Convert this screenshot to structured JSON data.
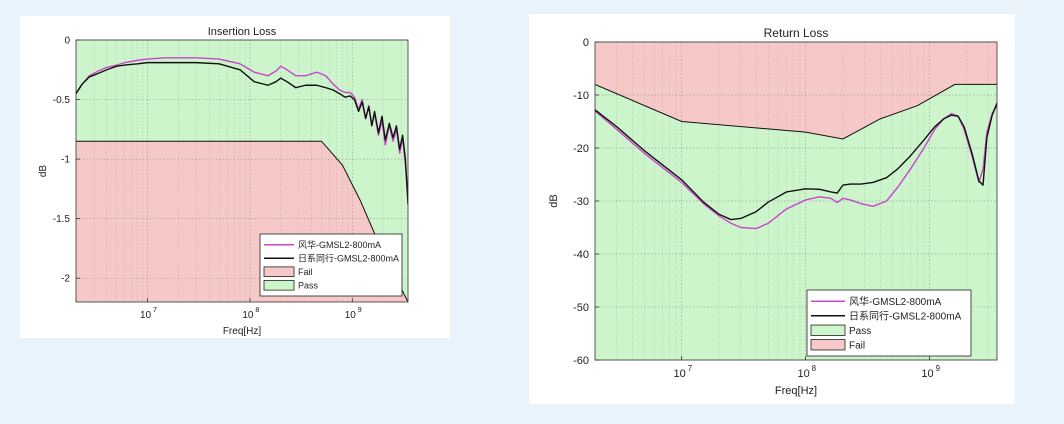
{
  "colors": {
    "page_background": "#e8f3fb",
    "pass": "#ccf5cc",
    "fail": "#f7c8c8",
    "series_fenghua": "#cc44cc",
    "series_rixi": "#111111",
    "grid": "#9a9a9a"
  },
  "chart_data": [
    {
      "id": "insertion-loss",
      "type": "line",
      "title": "Insertion Loss",
      "xlabel": "Freq[Hz]",
      "ylabel": "dB",
      "xscale": "log",
      "xlim": [
        2000000,
        3500000000
      ],
      "ylim": [
        -2.2,
        0
      ],
      "xticks": [
        {
          "v": 10000000,
          "label": "10",
          "exp": "7"
        },
        {
          "v": 100000000,
          "label": "10",
          "exp": "8"
        },
        {
          "v": 1000000000,
          "label": "10",
          "exp": "9"
        }
      ],
      "yticks": [
        {
          "v": 0,
          "label": "0"
        },
        {
          "v": -0.5,
          "label": "-0.5"
        },
        {
          "v": -1,
          "label": "-1"
        },
        {
          "v": -1.5,
          "label": "-1.5"
        },
        {
          "v": -2,
          "label": "-2"
        }
      ],
      "grid": true,
      "legend_position": "bottom-right",
      "limit_mask": {
        "pass_region": "above",
        "x": [
          2000000,
          500000000,
          800000000,
          1200000000,
          1800000000,
          2500000000,
          3500000000
        ],
        "y": [
          -0.85,
          -0.85,
          -1.05,
          -1.35,
          -1.7,
          -1.95,
          -2.2
        ]
      },
      "series": [
        {
          "name": "风华-GMSL2-800mA",
          "color": "#cc44cc",
          "x": [
            2000000,
            2300000,
            2700000,
            3300000,
            4000000,
            5000000,
            6000000,
            8000000,
            10000000,
            15000000,
            20000000,
            30000000,
            50000000,
            80000000,
            110000000,
            150000000,
            180000000,
            200000000,
            230000000,
            280000000,
            350000000,
            450000000,
            550000000,
            650000000,
            750000000,
            850000000,
            950000000,
            1050000000,
            1150000000,
            1250000000,
            1350000000,
            1450000000,
            1550000000,
            1650000000,
            1800000000,
            1950000000,
            2100000000,
            2300000000,
            2500000000,
            2700000000,
            2900000000,
            3100000000,
            3300000000,
            3500000000
          ],
          "y": [
            -0.45,
            -0.37,
            -0.3,
            -0.26,
            -0.23,
            -0.21,
            -0.19,
            -0.17,
            -0.16,
            -0.15,
            -0.15,
            -0.15,
            -0.16,
            -0.2,
            -0.27,
            -0.3,
            -0.26,
            -0.22,
            -0.25,
            -0.3,
            -0.3,
            -0.27,
            -0.3,
            -0.37,
            -0.42,
            -0.44,
            -0.44,
            -0.48,
            -0.58,
            -0.5,
            -0.66,
            -0.55,
            -0.72,
            -0.62,
            -0.8,
            -0.68,
            -0.88,
            -0.72,
            -0.85,
            -0.75,
            -0.95,
            -0.82,
            -1.05,
            -1.3
          ]
        },
        {
          "name": "日系同行-GMSL2-800mA",
          "color": "#111111",
          "x": [
            2000000,
            2300000,
            2700000,
            3300000,
            4000000,
            5000000,
            6000000,
            8000000,
            10000000,
            15000000,
            20000000,
            30000000,
            50000000,
            80000000,
            110000000,
            150000000,
            180000000,
            200000000,
            230000000,
            280000000,
            350000000,
            450000000,
            550000000,
            650000000,
            750000000,
            850000000,
            950000000,
            1050000000,
            1150000000,
            1250000000,
            1350000000,
            1450000000,
            1550000000,
            1650000000,
            1800000000,
            1950000000,
            2100000000,
            2300000000,
            2500000000,
            2700000000,
            2900000000,
            3100000000,
            3300000000,
            3500000000
          ],
          "y": [
            -0.45,
            -0.37,
            -0.31,
            -0.28,
            -0.25,
            -0.22,
            -0.21,
            -0.2,
            -0.19,
            -0.19,
            -0.19,
            -0.19,
            -0.2,
            -0.25,
            -0.35,
            -0.38,
            -0.35,
            -0.32,
            -0.35,
            -0.4,
            -0.38,
            -0.38,
            -0.4,
            -0.42,
            -0.45,
            -0.48,
            -0.47,
            -0.5,
            -0.6,
            -0.52,
            -0.66,
            -0.56,
            -0.72,
            -0.6,
            -0.78,
            -0.64,
            -0.84,
            -0.7,
            -0.82,
            -0.72,
            -0.92,
            -0.8,
            -1.0,
            -1.38
          ]
        }
      ],
      "legend": [
        {
          "label": "风华-GMSL2-800mA",
          "kind": "line",
          "color": "#cc44cc"
        },
        {
          "label": "日系同行-GMSL2-800mA",
          "kind": "line",
          "color": "#111111"
        },
        {
          "label": "Fail",
          "kind": "patch",
          "color": "#f7c8c8"
        },
        {
          "label": "Pass",
          "kind": "patch",
          "color": "#ccf5cc"
        }
      ]
    },
    {
      "id": "return-loss",
      "type": "line",
      "title": "Return Loss",
      "xlabel": "Freq[Hz]",
      "ylabel": "dB",
      "xscale": "log",
      "xlim": [
        2000000,
        3500000000
      ],
      "ylim": [
        -60,
        0
      ],
      "xticks": [
        {
          "v": 10000000,
          "label": "10",
          "exp": "7"
        },
        {
          "v": 100000000,
          "label": "10",
          "exp": "8"
        },
        {
          "v": 1000000000,
          "label": "10",
          "exp": "9"
        }
      ],
      "yticks": [
        {
          "v": 0,
          "label": "0"
        },
        {
          "v": -10,
          "label": "-10"
        },
        {
          "v": -20,
          "label": "-20"
        },
        {
          "v": -30,
          "label": "-30"
        },
        {
          "v": -40,
          "label": "-40"
        },
        {
          "v": -50,
          "label": "-50"
        },
        {
          "v": -60,
          "label": "-60"
        }
      ],
      "grid": true,
      "legend_position": "bottom-right",
      "limit_mask": {
        "pass_region": "below",
        "x": [
          2000000,
          10000000,
          100000000,
          200000000,
          400000000,
          800000000,
          1600000000,
          3500000000
        ],
        "y": [
          -8,
          -15,
          -17,
          -18.3,
          -14.5,
          -12,
          -8,
          -8
        ]
      },
      "series": [
        {
          "name": "风华-GMSL2-800mA",
          "color": "#cc44cc",
          "x": [
            2000000,
            3000000,
            5000000,
            10000000,
            15000000,
            20000000,
            25000000,
            30000000,
            40000000,
            50000000,
            70000000,
            100000000,
            130000000,
            160000000,
            180000000,
            200000000,
            230000000,
            280000000,
            350000000,
            450000000,
            550000000,
            700000000,
            900000000,
            1100000000,
            1300000000,
            1500000000,
            1700000000,
            1900000000,
            2200000000,
            2500000000,
            2700000000,
            2900000000,
            3200000000,
            3500000000
          ],
          "y": [
            -13,
            -16.5,
            -21,
            -26.5,
            -30.5,
            -32.8,
            -34.2,
            -35,
            -35.2,
            -34.2,
            -31.5,
            -29.8,
            -29.2,
            -29.5,
            -30.3,
            -29.5,
            -29.8,
            -30.5,
            -31,
            -30,
            -27.5,
            -24,
            -20,
            -16.5,
            -14.5,
            -13.5,
            -14,
            -16.5,
            -21.5,
            -26.5,
            -24,
            -17,
            -13.5,
            -12
          ]
        },
        {
          "name": "日系同行-GMSL2-800mA",
          "color": "#111111",
          "x": [
            2000000,
            3000000,
            5000000,
            10000000,
            15000000,
            20000000,
            25000000,
            30000000,
            40000000,
            50000000,
            70000000,
            100000000,
            130000000,
            160000000,
            180000000,
            200000000,
            230000000,
            280000000,
            350000000,
            450000000,
            550000000,
            700000000,
            900000000,
            1100000000,
            1300000000,
            1500000000,
            1700000000,
            1900000000,
            2200000000,
            2500000000,
            2700000000,
            2900000000,
            3200000000,
            3500000000
          ],
          "y": [
            -12.8,
            -16,
            -20.5,
            -26,
            -30.2,
            -32.5,
            -33.5,
            -33.3,
            -32,
            -30.2,
            -28.3,
            -27.7,
            -27.8,
            -28.3,
            -28.5,
            -27,
            -26.8,
            -26.8,
            -26.5,
            -25.6,
            -24,
            -21.5,
            -18.5,
            -16,
            -14.5,
            -13.8,
            -14,
            -16,
            -21,
            -26.2,
            -27,
            -18,
            -13.8,
            -11.5
          ]
        }
      ],
      "legend": [
        {
          "label": "风华-GMSL2-800mA",
          "kind": "line",
          "color": "#cc44cc"
        },
        {
          "label": "日系同行-GMSL2-800mA",
          "kind": "line",
          "color": "#111111"
        },
        {
          "label": "Pass",
          "kind": "patch",
          "color": "#ccf5cc"
        },
        {
          "label": "Fail",
          "kind": "patch",
          "color": "#f7c8c8"
        }
      ]
    }
  ]
}
